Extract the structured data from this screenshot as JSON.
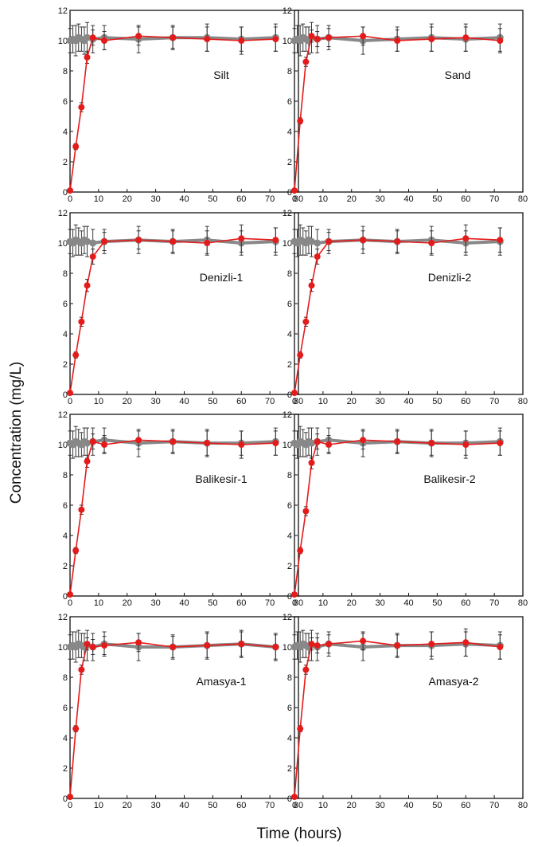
{
  "figure": {
    "ylabel": "Concentration (mg/L)",
    "xlabel": "Time (hours)"
  },
  "colors": {
    "series_a": "#e41b1b",
    "series_b": "#888888",
    "error_bar": "#222222",
    "frame": "#111111"
  },
  "chart_data": [
    {
      "type": "line",
      "label": "Silt",
      "xlim": [
        0,
        80
      ],
      "ylim": [
        0,
        12
      ],
      "xticks": [
        "0",
        "10",
        "20",
        "30",
        "40",
        "50",
        "60",
        "70",
        "80"
      ],
      "yticks": [
        "0",
        "2",
        "4",
        "6",
        "8",
        "10",
        "12"
      ],
      "series": [
        {
          "x": [
            0,
            1,
            2,
            3,
            4,
            5,
            6,
            8,
            12,
            24,
            36,
            48,
            60,
            72
          ],
          "y": [
            10.0,
            10.1,
            10.0,
            10.2,
            10.1,
            10.0,
            10.2,
            10.1,
            10.2,
            10.1,
            10.2,
            10.2,
            10.1,
            10.2
          ],
          "err": [
            0.8,
            0.9,
            1.0,
            0.9,
            0.8,
            0.9,
            1.0,
            0.9,
            0.8,
            0.9,
            0.8,
            0.9,
            0.8,
            0.9
          ]
        },
        {
          "x": [
            0,
            2,
            4,
            6,
            8,
            12,
            24,
            36,
            48,
            60,
            72
          ],
          "y": [
            0.1,
            3.0,
            5.6,
            8.9,
            10.2,
            10.0,
            10.3,
            10.2,
            10.1,
            10.0,
            10.1
          ],
          "err": [
            0,
            0.2,
            0.3,
            0.4,
            0.5,
            0.6,
            0.6,
            0.7,
            0.8,
            0.9,
            0.8
          ]
        }
      ]
    },
    {
      "type": "line",
      "label": "Sand",
      "xlim": [
        0,
        80
      ],
      "ylim": [
        0,
        12
      ],
      "xticks": [
        "0",
        "10",
        "20",
        "30",
        "40",
        "50",
        "60",
        "70",
        "80"
      ],
      "yticks": [
        "0",
        "2",
        "4",
        "6",
        "8",
        "10",
        "12"
      ],
      "series": [
        {
          "x": [
            0,
            1,
            2,
            3,
            4,
            5,
            6,
            8,
            12,
            24,
            36,
            48,
            60,
            72
          ],
          "y": [
            10.0,
            10.1,
            10.0,
            10.2,
            10.1,
            10.0,
            10.2,
            10.1,
            10.2,
            10.0,
            10.1,
            10.2,
            10.1,
            10.2
          ],
          "err": [
            0.8,
            0.9,
            1.0,
            0.9,
            0.8,
            0.9,
            1.0,
            0.9,
            0.8,
            0.9,
            0.8,
            0.9,
            0.8,
            0.9
          ]
        },
        {
          "x": [
            0,
            2,
            4,
            6,
            8,
            12,
            24,
            36,
            48,
            60,
            72
          ],
          "y": [
            0.1,
            4.7,
            8.6,
            10.3,
            10.1,
            10.2,
            10.3,
            10.0,
            10.1,
            10.2,
            10.0
          ],
          "err": [
            0,
            0.2,
            0.3,
            0.4,
            0.5,
            0.6,
            0.6,
            0.7,
            0.8,
            0.9,
            0.8
          ]
        }
      ]
    },
    {
      "type": "line",
      "label": "Denizli-1",
      "xlim": [
        0,
        80
      ],
      "ylim": [
        0,
        12
      ],
      "xticks": [
        "0",
        "10",
        "20",
        "30",
        "40",
        "50",
        "60",
        "70",
        "80"
      ],
      "yticks": [
        "0",
        "2",
        "4",
        "6",
        "8",
        "10",
        "12"
      ],
      "series": [
        {
          "x": [
            0,
            1,
            2,
            3,
            4,
            5,
            6,
            8,
            12,
            24,
            36,
            48,
            60,
            72
          ],
          "y": [
            10.1,
            10.0,
            10.2,
            10.1,
            10.0,
            10.2,
            10.1,
            10.0,
            10.1,
            10.2,
            10.1,
            10.2,
            10.0,
            10.1
          ],
          "err": [
            0.8,
            0.9,
            1.0,
            0.9,
            0.8,
            0.9,
            1.0,
            0.9,
            0.8,
            0.9,
            0.8,
            0.9,
            0.8,
            0.9
          ]
        },
        {
          "x": [
            0,
            2,
            4,
            6,
            8,
            12,
            24,
            36,
            48,
            60,
            72
          ],
          "y": [
            0.1,
            2.6,
            4.8,
            7.2,
            9.1,
            10.1,
            10.2,
            10.1,
            10.0,
            10.3,
            10.2
          ],
          "err": [
            0,
            0.2,
            0.3,
            0.4,
            0.5,
            0.6,
            0.6,
            0.7,
            0.8,
            0.9,
            0.8
          ]
        }
      ]
    },
    {
      "type": "line",
      "label": "Denizli-2",
      "xlim": [
        0,
        80
      ],
      "ylim": [
        0,
        12
      ],
      "xticks": [
        "0",
        "10",
        "20",
        "30",
        "40",
        "50",
        "60",
        "70",
        "80"
      ],
      "yticks": [
        "0",
        "2",
        "4",
        "6",
        "8",
        "10",
        "12"
      ],
      "series": [
        {
          "x": [
            0,
            1,
            2,
            3,
            4,
            5,
            6,
            8,
            12,
            24,
            36,
            48,
            60,
            72
          ],
          "y": [
            10.1,
            10.0,
            10.2,
            10.1,
            10.0,
            10.2,
            10.1,
            10.0,
            10.1,
            10.2,
            10.1,
            10.2,
            10.0,
            10.1
          ],
          "err": [
            0.8,
            0.9,
            1.0,
            0.9,
            0.8,
            0.9,
            1.0,
            0.9,
            0.8,
            0.9,
            0.8,
            0.9,
            0.8,
            0.9
          ]
        },
        {
          "x": [
            0,
            2,
            4,
            6,
            8,
            12,
            24,
            36,
            48,
            60,
            72
          ],
          "y": [
            0.1,
            2.6,
            4.8,
            7.2,
            9.1,
            10.1,
            10.2,
            10.1,
            10.0,
            10.3,
            10.2
          ],
          "err": [
            0,
            0.2,
            0.3,
            0.4,
            0.5,
            0.6,
            0.6,
            0.7,
            0.8,
            0.9,
            0.8
          ]
        }
      ]
    },
    {
      "type": "line",
      "label": "Balikesir-1",
      "xlim": [
        0,
        80
      ],
      "ylim": [
        0,
        12
      ],
      "xticks": [
        "0",
        "10",
        "20",
        "30",
        "40",
        "50",
        "60",
        "70",
        "80"
      ],
      "yticks": [
        "0",
        "2",
        "4",
        "6",
        "8",
        "10",
        "12"
      ],
      "series": [
        {
          "x": [
            0,
            1,
            2,
            3,
            4,
            5,
            6,
            8,
            12,
            24,
            36,
            48,
            60,
            72
          ],
          "y": [
            10.1,
            10.0,
            10.2,
            10.1,
            10.0,
            10.2,
            10.1,
            10.2,
            10.3,
            10.1,
            10.2,
            10.1,
            10.1,
            10.2
          ],
          "err": [
            0.8,
            0.9,
            1.0,
            0.9,
            0.8,
            0.9,
            1.0,
            0.9,
            0.8,
            0.9,
            0.8,
            0.9,
            0.8,
            0.9
          ]
        },
        {
          "x": [
            0,
            2,
            4,
            6,
            8,
            12,
            24,
            36,
            48,
            60,
            72
          ],
          "y": [
            0.1,
            3.0,
            5.7,
            8.9,
            10.2,
            10.0,
            10.3,
            10.2,
            10.1,
            10.0,
            10.1
          ],
          "err": [
            0,
            0.2,
            0.3,
            0.4,
            0.5,
            0.6,
            0.6,
            0.7,
            0.8,
            0.9,
            0.8
          ]
        }
      ]
    },
    {
      "type": "line",
      "label": "Balikesir-2",
      "xlim": [
        0,
        80
      ],
      "ylim": [
        0,
        12
      ],
      "xticks": [
        "0",
        "10",
        "20",
        "30",
        "40",
        "50",
        "60",
        "70",
        "80"
      ],
      "yticks": [
        "0",
        "2",
        "4",
        "6",
        "8",
        "10",
        "12"
      ],
      "series": [
        {
          "x": [
            0,
            1,
            2,
            3,
            4,
            5,
            6,
            8,
            12,
            24,
            36,
            48,
            60,
            72
          ],
          "y": [
            10.1,
            10.0,
            10.2,
            10.1,
            10.0,
            10.2,
            10.1,
            10.2,
            10.3,
            10.1,
            10.2,
            10.1,
            10.1,
            10.2
          ],
          "err": [
            0.8,
            0.9,
            1.0,
            0.9,
            0.8,
            0.9,
            1.0,
            0.9,
            0.8,
            0.9,
            0.8,
            0.9,
            0.8,
            0.9
          ]
        },
        {
          "x": [
            0,
            2,
            4,
            6,
            8,
            12,
            24,
            36,
            48,
            60,
            72
          ],
          "y": [
            0.1,
            3.0,
            5.6,
            8.8,
            10.2,
            10.0,
            10.3,
            10.2,
            10.1,
            10.0,
            10.1
          ],
          "err": [
            0,
            0.2,
            0.3,
            0.4,
            0.5,
            0.6,
            0.6,
            0.7,
            0.8,
            0.9,
            0.8
          ]
        }
      ]
    },
    {
      "type": "line",
      "label": "Amasya-1",
      "xlim": [
        0,
        80
      ],
      "ylim": [
        0,
        12
      ],
      "xticks": [
        "0",
        "10",
        "20",
        "30",
        "40",
        "50",
        "60",
        "70",
        "80"
      ],
      "yticks": [
        "0",
        "2",
        "4",
        "6",
        "8",
        "10",
        "12"
      ],
      "series": [
        {
          "x": [
            0,
            1,
            2,
            3,
            4,
            5,
            6,
            8,
            12,
            24,
            36,
            48,
            60,
            72
          ],
          "y": [
            10.0,
            10.1,
            10.0,
            10.2,
            10.1,
            10.0,
            10.1,
            10.0,
            10.2,
            10.0,
            10.0,
            10.1,
            10.2,
            10.0
          ],
          "err": [
            0.8,
            0.9,
            1.0,
            0.9,
            0.8,
            0.9,
            1.0,
            0.9,
            0.8,
            0.9,
            0.8,
            0.9,
            0.8,
            0.9
          ]
        },
        {
          "x": [
            0,
            2,
            4,
            6,
            8,
            12,
            24,
            36,
            48,
            60,
            72
          ],
          "y": [
            0.1,
            4.6,
            8.5,
            10.2,
            10.0,
            10.1,
            10.3,
            10.0,
            10.1,
            10.2,
            10.0
          ],
          "err": [
            0,
            0.2,
            0.3,
            0.4,
            0.5,
            0.6,
            0.6,
            0.7,
            0.8,
            0.9,
            0.8
          ]
        }
      ]
    },
    {
      "type": "line",
      "label": "Amasya-2",
      "xlim": [
        0,
        80
      ],
      "ylim": [
        0,
        12
      ],
      "xticks": [
        "0",
        "10",
        "20",
        "30",
        "40",
        "50",
        "60",
        "70",
        "80"
      ],
      "yticks": [
        "0",
        "2",
        "4",
        "6",
        "8",
        "10",
        "12"
      ],
      "series": [
        {
          "x": [
            0,
            1,
            2,
            3,
            4,
            5,
            6,
            8,
            12,
            24,
            36,
            48,
            60,
            72
          ],
          "y": [
            10.0,
            10.1,
            10.0,
            10.2,
            10.1,
            10.0,
            10.1,
            10.0,
            10.2,
            10.0,
            10.1,
            10.1,
            10.2,
            10.1
          ],
          "err": [
            0.8,
            0.9,
            1.0,
            0.9,
            0.8,
            0.9,
            1.0,
            0.9,
            0.8,
            0.9,
            0.8,
            0.9,
            0.8,
            0.9
          ]
        },
        {
          "x": [
            0,
            2,
            4,
            6,
            8,
            12,
            24,
            36,
            48,
            60,
            72
          ],
          "y": [
            0.1,
            4.6,
            8.5,
            10.2,
            10.1,
            10.2,
            10.4,
            10.1,
            10.2,
            10.3,
            10.0
          ],
          "err": [
            0,
            0.2,
            0.3,
            0.4,
            0.5,
            0.6,
            0.6,
            0.7,
            0.8,
            0.9,
            0.8
          ]
        }
      ]
    }
  ]
}
